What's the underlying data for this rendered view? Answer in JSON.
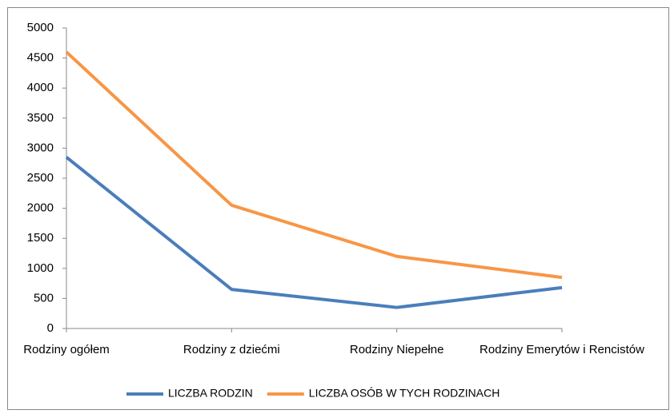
{
  "chart_data": {
    "type": "line",
    "categories": [
      "Rodziny ogółem",
      "Rodziny z dziećmi",
      "Rodziny Niepełne",
      "Rodziny Emerytów i Rencistów"
    ],
    "series": [
      {
        "name": "LICZBA RODZIN",
        "color": "#4a7ebb",
        "values": [
          2850,
          650,
          350,
          680
        ]
      },
      {
        "name": "LICZBA OSÓB W TYCH RODZINACH",
        "color": "#f79646",
        "values": [
          4600,
          2050,
          1200,
          850
        ]
      }
    ],
    "ylim": [
      0,
      5000
    ],
    "yticks": [
      0,
      500,
      1000,
      1500,
      2000,
      2500,
      3000,
      3500,
      4000,
      4500,
      5000
    ],
    "grid": false,
    "legend": "bottom"
  }
}
